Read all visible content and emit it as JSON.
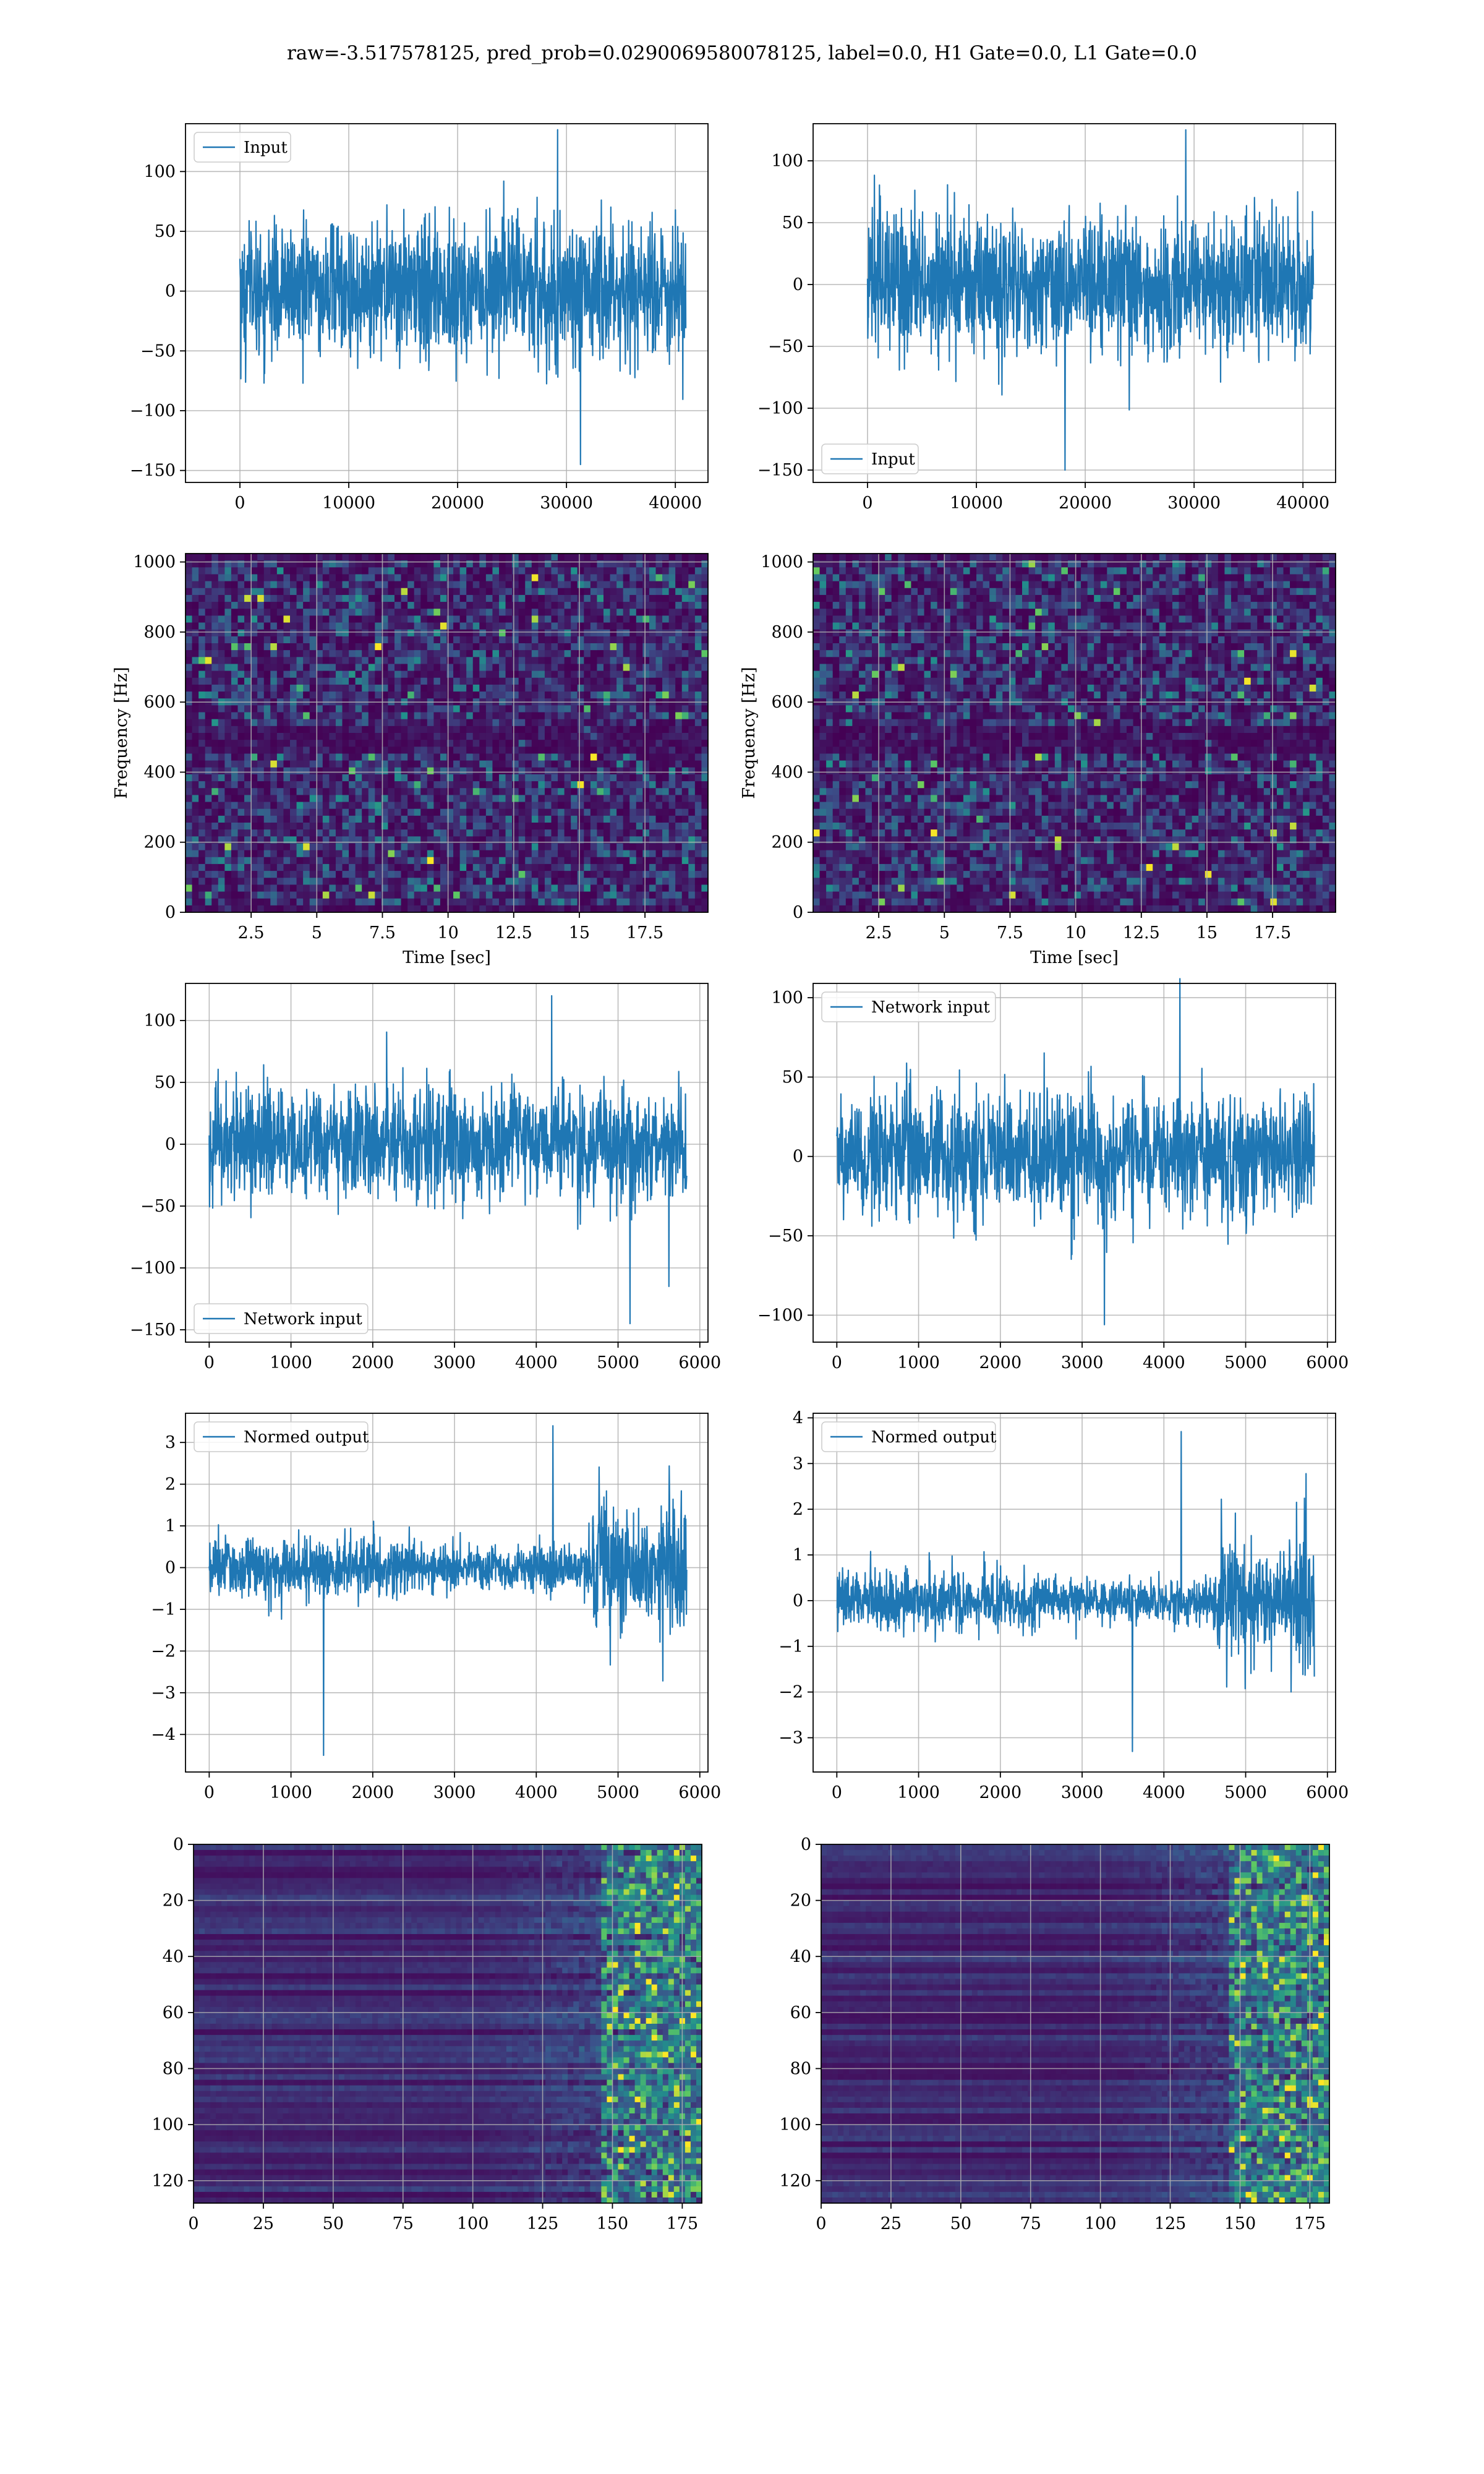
{
  "figure_title": "raw=-3.517578125, pred_prob=0.0290069580078125, label=0.0, H1 Gate=0.0, L1 Gate=0.0",
  "colors": {
    "line": "#1f77b4",
    "grid": "#b0b0b0",
    "viridis_low": "#440154",
    "viridis_mid": "#21918c",
    "viridis_high": "#fde725"
  },
  "chart_data": [
    {
      "type": "line",
      "panel": "row1-left",
      "series": [
        {
          "name": "Input",
          "kind": "noise",
          "amp": 28,
          "peak": 135,
          "trough": -145
        }
      ],
      "xlim": [
        -5000,
        43000
      ],
      "ylim": [
        -160,
        140
      ],
      "xticks": [
        0,
        10000,
        20000,
        30000,
        40000
      ],
      "yticks": [
        -150,
        -100,
        -50,
        0,
        50,
        100
      ],
      "x_range": [
        0,
        40960
      ],
      "legend_loc": "upper left",
      "title": "",
      "xlabel": "",
      "ylabel": "",
      "grid": true
    },
    {
      "type": "line",
      "panel": "row1-right",
      "series": [
        {
          "name": "Input",
          "kind": "noise",
          "amp": 27,
          "peak": 125,
          "trough": -150
        }
      ],
      "xlim": [
        -5000,
        43000
      ],
      "ylim": [
        -160,
        130
      ],
      "xticks": [
        0,
        10000,
        20000,
        30000,
        40000
      ],
      "yticks": [
        -150,
        -100,
        -50,
        0,
        50,
        100
      ],
      "x_range": [
        0,
        40960
      ],
      "legend_loc": "lower left",
      "title": "",
      "xlabel": "",
      "ylabel": "",
      "grid": true
    },
    {
      "type": "heatmap",
      "panel": "row2-left",
      "variant": "spectrogram",
      "xlim": [
        0,
        19.9
      ],
      "ylim": [
        0,
        1024
      ],
      "xticks": [
        2.5,
        5.0,
        7.5,
        10.0,
        12.5,
        15.0,
        17.5
      ],
      "yticks": [
        0,
        200,
        400,
        600,
        800,
        1000
      ],
      "xlabel": "Time [sec]",
      "ylabel": "Frequency [Hz]",
      "title": "",
      "grid": true
    },
    {
      "type": "heatmap",
      "panel": "row2-right",
      "variant": "spectrogram",
      "xlim": [
        0,
        19.9
      ],
      "ylim": [
        0,
        1024
      ],
      "xticks": [
        2.5,
        5.0,
        7.5,
        10.0,
        12.5,
        15.0,
        17.5
      ],
      "yticks": [
        0,
        200,
        400,
        600,
        800,
        1000
      ],
      "xlabel": "Time [sec]",
      "ylabel": "Frequency [Hz]",
      "title": "",
      "grid": true
    },
    {
      "type": "line",
      "panel": "row3-left",
      "series": [
        {
          "name": "Network input",
          "kind": "noise",
          "amp": 22,
          "peak": 120,
          "trough": -145
        }
      ],
      "xlim": [
        -290,
        6100
      ],
      "ylim": [
        -160,
        130
      ],
      "xticks": [
        0,
        1000,
        2000,
        3000,
        4000,
        5000,
        6000
      ],
      "yticks": [
        -150,
        -100,
        -50,
        0,
        50,
        100
      ],
      "x_range": [
        0,
        5840
      ],
      "legend_loc": "lower left",
      "title": "",
      "xlabel": "",
      "ylabel": "",
      "grid": true
    },
    {
      "type": "line",
      "panel": "row3-right",
      "series": [
        {
          "name": "Network input",
          "kind": "noise",
          "amp": 20,
          "peak": 112,
          "trough": -106
        }
      ],
      "xlim": [
        -290,
        6100
      ],
      "ylim": [
        -117,
        109
      ],
      "xticks": [
        0,
        1000,
        2000,
        3000,
        4000,
        5000,
        6000
      ],
      "yticks": [
        -100,
        -50,
        0,
        50,
        100
      ],
      "x_range": [
        0,
        5840
      ],
      "legend_loc": "upper left",
      "title": "",
      "xlabel": "",
      "ylabel": "",
      "grid": true
    },
    {
      "type": "line",
      "panel": "row4-left",
      "series": [
        {
          "name": "Normed output",
          "kind": "normed",
          "amp": 0.35,
          "peak": 3.4,
          "trough": -4.5
        }
      ],
      "xlim": [
        -290,
        6100
      ],
      "ylim": [
        -4.9,
        3.7
      ],
      "xticks": [
        0,
        1000,
        2000,
        3000,
        4000,
        5000,
        6000
      ],
      "yticks": [
        -4,
        -3,
        -2,
        -1,
        0,
        1,
        2,
        3
      ],
      "x_range": [
        0,
        5840
      ],
      "legend_loc": "upper left",
      "title": "",
      "xlabel": "",
      "ylabel": "",
      "grid": true
    },
    {
      "type": "line",
      "panel": "row4-right",
      "series": [
        {
          "name": "Normed output",
          "kind": "normed",
          "amp": 0.33,
          "peak": 3.7,
          "trough": -3.3
        }
      ],
      "xlim": [
        -290,
        6100
      ],
      "ylim": [
        -3.75,
        4.1
      ],
      "xticks": [
        0,
        1000,
        2000,
        3000,
        4000,
        5000,
        6000
      ],
      "yticks": [
        -3,
        -2,
        -1,
        0,
        1,
        2,
        3,
        4
      ],
      "x_range": [
        0,
        5840
      ],
      "legend_loc": "upper left",
      "title": "",
      "xlabel": "",
      "ylabel": "",
      "grid": true
    },
    {
      "type": "heatmap",
      "panel": "row5-left",
      "variant": "feature-map",
      "xlim": [
        0,
        182
      ],
      "ylim": [
        128,
        0
      ],
      "xticks": [
        0,
        25,
        50,
        75,
        100,
        125,
        150,
        175
      ],
      "yticks": [
        0,
        20,
        40,
        60,
        80,
        100,
        120
      ],
      "xlabel": "",
      "ylabel": "",
      "title": "",
      "grid": true
    },
    {
      "type": "heatmap",
      "panel": "row5-right",
      "variant": "feature-map",
      "xlim": [
        0,
        182
      ],
      "ylim": [
        128,
        0
      ],
      "xticks": [
        0,
        25,
        50,
        75,
        100,
        125,
        150,
        175
      ],
      "yticks": [
        0,
        20,
        40,
        60,
        80,
        100,
        120
      ],
      "xlabel": "",
      "ylabel": "",
      "title": "",
      "grid": true
    }
  ]
}
